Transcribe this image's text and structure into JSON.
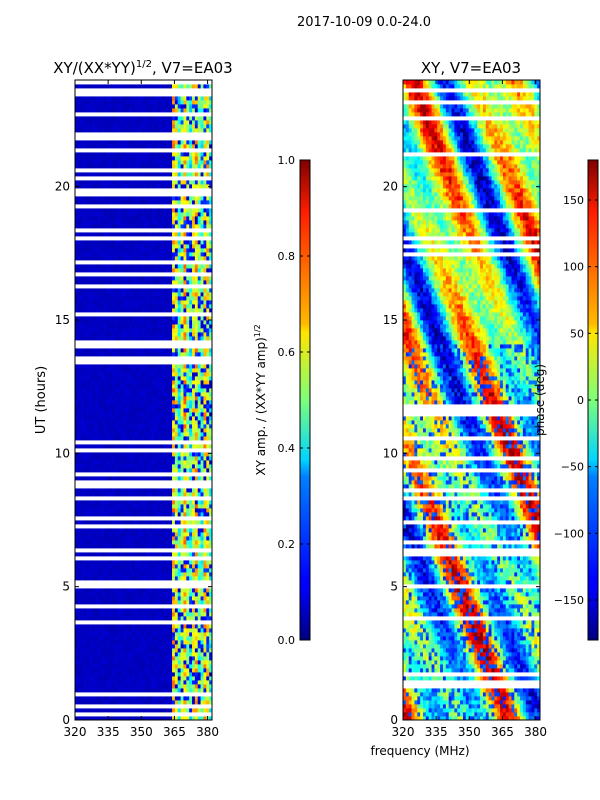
{
  "figure": {
    "suptitle": "2017-10-09 0.0-24.0",
    "xlabel": "frequency (MHz)"
  },
  "chart_data": [
    {
      "type": "heatmap",
      "title": "XY/(XX*YY)^1/2, V7=EA03",
      "title_main": "XY/(XX*YY)",
      "title_sup": "1/2",
      "title_tail": ", V7=EA03",
      "xlabel": "frequency (MHz)",
      "ylabel": "UT (hours)",
      "xlim": [
        320,
        382
      ],
      "ylim": [
        0,
        24
      ],
      "xticks": [
        320,
        335,
        350,
        365,
        380
      ],
      "yticks": [
        0,
        5,
        10,
        15,
        20
      ],
      "colorbar": {
        "label": "XY amp. / (XX*YY amp)^1/2",
        "label_main": "XY amp. / (XX*YY amp)",
        "label_sup": "1/2",
        "range": [
          0.0,
          1.0
        ],
        "ticks": [
          "0.0",
          "0.2",
          "0.4",
          "0.6",
          "0.8",
          "1.0"
        ],
        "tick_values": [
          0.0,
          0.2,
          0.4,
          0.6,
          0.8,
          1.0
        ],
        "colormap": "jet"
      },
      "description_values": {
        "background_level": 0.05,
        "rfi_band_mhz": [
          363,
          381
        ],
        "rfi_level_range": [
          0.3,
          0.8
        ]
      }
    },
    {
      "type": "heatmap",
      "title": "XY, V7=EA03",
      "xlabel": "frequency (MHz)",
      "ylabel": "",
      "xlim": [
        320,
        382
      ],
      "ylim": [
        0,
        24
      ],
      "xticks": [
        320,
        335,
        350,
        365,
        380
      ],
      "yticks": [
        0,
        5,
        10,
        15,
        20
      ],
      "colorbar": {
        "label": "phase (deg)",
        "range": [
          -180,
          180
        ],
        "ticks": [
          "−150",
          "−100",
          "−50",
          "0",
          "50",
          "100",
          "150"
        ],
        "tick_values": [
          -150,
          -100,
          -50,
          0,
          50,
          100,
          150
        ],
        "colormap": "jet"
      }
    }
  ]
}
